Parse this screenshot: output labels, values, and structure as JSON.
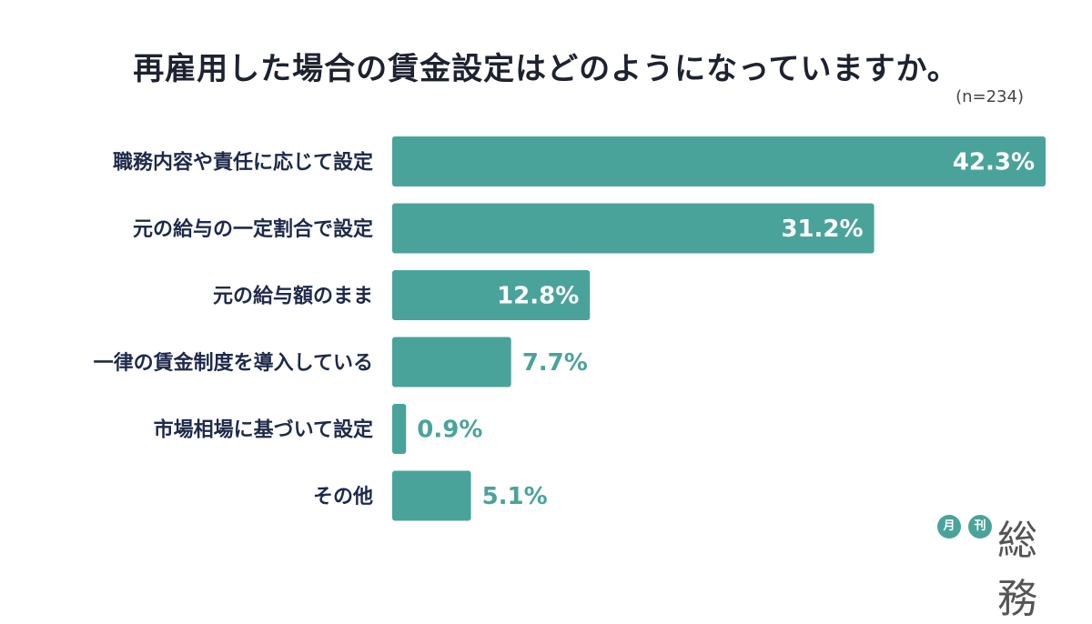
{
  "title": "再雇用した場合の賃金設定はどのようになっていますか。",
  "sample_note": "(n=234)",
  "brand": {
    "badge1": "月",
    "badge2": "刊",
    "name": "総務"
  },
  "colors": {
    "bar": "#4aa39b",
    "value_inside": "#ffffff",
    "value_outside": "#4aa39b",
    "label": "#1f2a4a"
  },
  "chart_data": {
    "type": "bar",
    "orientation": "horizontal",
    "categories": [
      "職務内容や責任に応じて設定",
      "元の給与の一定割合で設定",
      "元の給与額のまま",
      "一律の賃金制度を導入している",
      "市場相場に基づいて設定",
      "その他"
    ],
    "values": [
      42.3,
      31.2,
      12.8,
      7.7,
      0.9,
      5.1
    ],
    "value_labels": [
      "42.3%",
      "31.2%",
      "12.8%",
      "7.7%",
      "0.9%",
      "5.1%"
    ],
    "unit": "%",
    "xlim": [
      0,
      42.3
    ],
    "grid": false
  }
}
